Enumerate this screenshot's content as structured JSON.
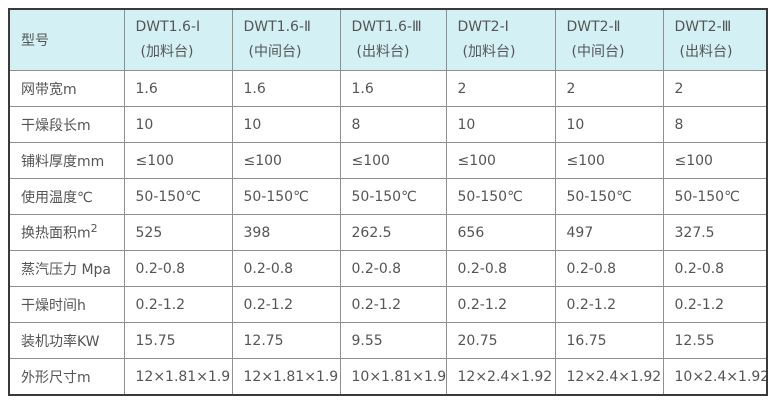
{
  "colors": {
    "page_bg": "#ffffff",
    "header_bg": "#d3f1f5",
    "inner_border": "#8f8f8f",
    "outer_border": "#3a3a3a",
    "text": "#555555"
  },
  "chart_data": {
    "type": "table",
    "header_label": "型号",
    "columns": [
      {
        "model": "DWT1.6-Ⅰ",
        "station": "(加料台)"
      },
      {
        "model": "DWT1.6-Ⅱ",
        "station": "(中间台)"
      },
      {
        "model": "DWT1.6-Ⅲ",
        "station": "(出料台)"
      },
      {
        "model": "DWT2-Ⅰ",
        "station": "(加料台)"
      },
      {
        "model": "DWT2-Ⅱ",
        "station": "(中间台)"
      },
      {
        "model": "DWT2-Ⅲ",
        "station": "(出料台)"
      }
    ],
    "rows": [
      {
        "label": "网带宽m",
        "values": [
          "1.6",
          "1.6",
          "1.6",
          "2",
          "2",
          "2"
        ]
      },
      {
        "label": "干燥段长m",
        "values": [
          "10",
          "10",
          "8",
          "10",
          "10",
          "8"
        ]
      },
      {
        "label": "铺料厚度mm",
        "values": [
          "≤100",
          "≤100",
          "≤100",
          "≤100",
          "≤100",
          "≤100"
        ]
      },
      {
        "label": "使用温度℃",
        "values": [
          "50-150℃",
          "50-150℃",
          "50-150℃",
          "50-150℃",
          "50-150℃",
          "50-150℃"
        ]
      },
      {
        "label": "换热面积m",
        "label_sup": "2",
        "values": [
          "525",
          "398",
          "262.5",
          "656",
          "497",
          "327.5"
        ]
      },
      {
        "label": "蒸汽压力 Mpa",
        "values": [
          "0.2-0.8",
          "0.2-0.8",
          "0.2-0.8",
          "0.2-0.8",
          "0.2-0.8",
          "0.2-0.8"
        ]
      },
      {
        "label": "干燥时间h",
        "values": [
          "0.2-1.2",
          "0.2-1.2",
          "0.2-1.2",
          "0.2-1.2",
          "0.2-1.2",
          "0.2-1.2"
        ]
      },
      {
        "label": "装机功率KW",
        "values": [
          "15.75",
          "12.75",
          "9.55",
          "20.75",
          "16.75",
          "12.55"
        ]
      },
      {
        "label": "外形尺寸m",
        "values": [
          "12×1.81×1.9",
          "12×1.81×1.9",
          "10×1.81×1.9",
          "12×2.4×1.92",
          "12×2.4×1.92",
          "10×2.4×1.92"
        ]
      }
    ]
  }
}
